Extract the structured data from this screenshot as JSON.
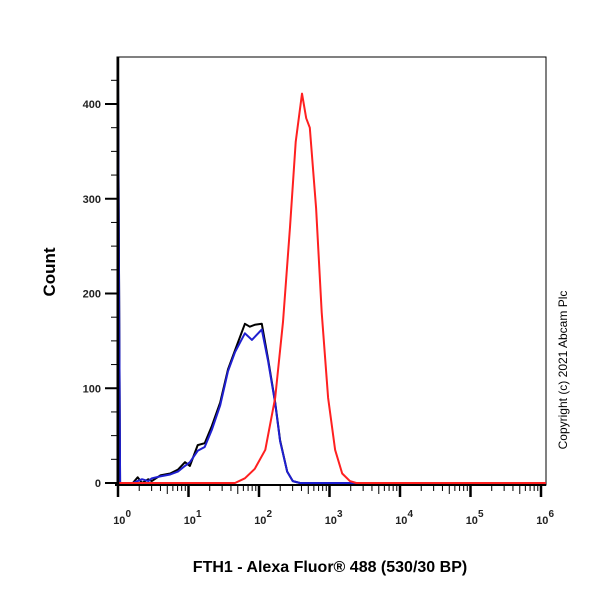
{
  "chart_data": {
    "type": "line",
    "title": "",
    "xlabel": "FTH1 - Alexa Fluor® 488 (530/30 BP)",
    "ylabel": "Count",
    "x_scale": "log",
    "xlim_log10": [
      0,
      6.07
    ],
    "ylim": [
      0,
      450
    ],
    "yticks": [
      0,
      100,
      200,
      300,
      400
    ],
    "ytick_labels": [
      "0",
      "100",
      "200",
      "300",
      "400"
    ],
    "xticks_log10": [
      0,
      1,
      2,
      3,
      4,
      5,
      6
    ],
    "xtick_base": "10",
    "xtick_exponents": [
      "0",
      "1",
      "2",
      "3",
      "4",
      "5",
      "6"
    ],
    "grid": false,
    "annotation": "Copyright (c) 2021 Abcam Plc",
    "series": [
      {
        "name": "black",
        "color": "#000000",
        "x_log10": [
          0,
          0.03,
          0.21,
          0.28,
          0.34,
          0.43,
          0.48,
          0.6,
          0.74,
          0.85,
          0.95,
          1.02,
          1.13,
          1.23,
          1.33,
          1.45,
          1.56,
          1.66,
          1.8,
          1.87,
          1.94,
          2.04,
          2.13,
          2.23,
          2.3,
          2.4,
          2.48,
          2.58,
          6.07
        ],
        "counts": [
          430,
          0,
          0,
          6,
          0,
          4,
          2,
          8,
          10,
          14,
          22,
          18,
          40,
          42,
          60,
          85,
          120,
          140,
          168,
          165,
          167,
          168,
          130,
          85,
          45,
          12,
          2,
          0,
          0
        ]
      },
      {
        "name": "blue",
        "color": "#1f1fd0",
        "x_log10": [
          0,
          0.03,
          0.21,
          0.28,
          0.34,
          0.43,
          0.48,
          0.6,
          0.74,
          0.85,
          0.95,
          1.02,
          1.13,
          1.23,
          1.33,
          1.45,
          1.56,
          1.66,
          1.8,
          1.9,
          2.04,
          2.13,
          2.23,
          2.3,
          2.4,
          2.48,
          2.58,
          6.07
        ],
        "counts": [
          425,
          0,
          0,
          2,
          4,
          2,
          5,
          7,
          9,
          12,
          18,
          22,
          34,
          38,
          56,
          82,
          118,
          138,
          158,
          151,
          162,
          128,
          84,
          44,
          12,
          2,
          0,
          0
        ]
      },
      {
        "name": "red",
        "color": "#ff2020",
        "x_log10": [
          0,
          1.66,
          1.8,
          1.94,
          2.09,
          2.23,
          2.34,
          2.44,
          2.52,
          2.61,
          2.67,
          2.72,
          2.81,
          2.89,
          2.98,
          3.08,
          3.18,
          3.29,
          3.38,
          6.07
        ],
        "counts": [
          0,
          0,
          5,
          15,
          35,
          90,
          170,
          270,
          360,
          411,
          385,
          375,
          290,
          180,
          90,
          35,
          10,
          2,
          0,
          0
        ]
      }
    ]
  }
}
